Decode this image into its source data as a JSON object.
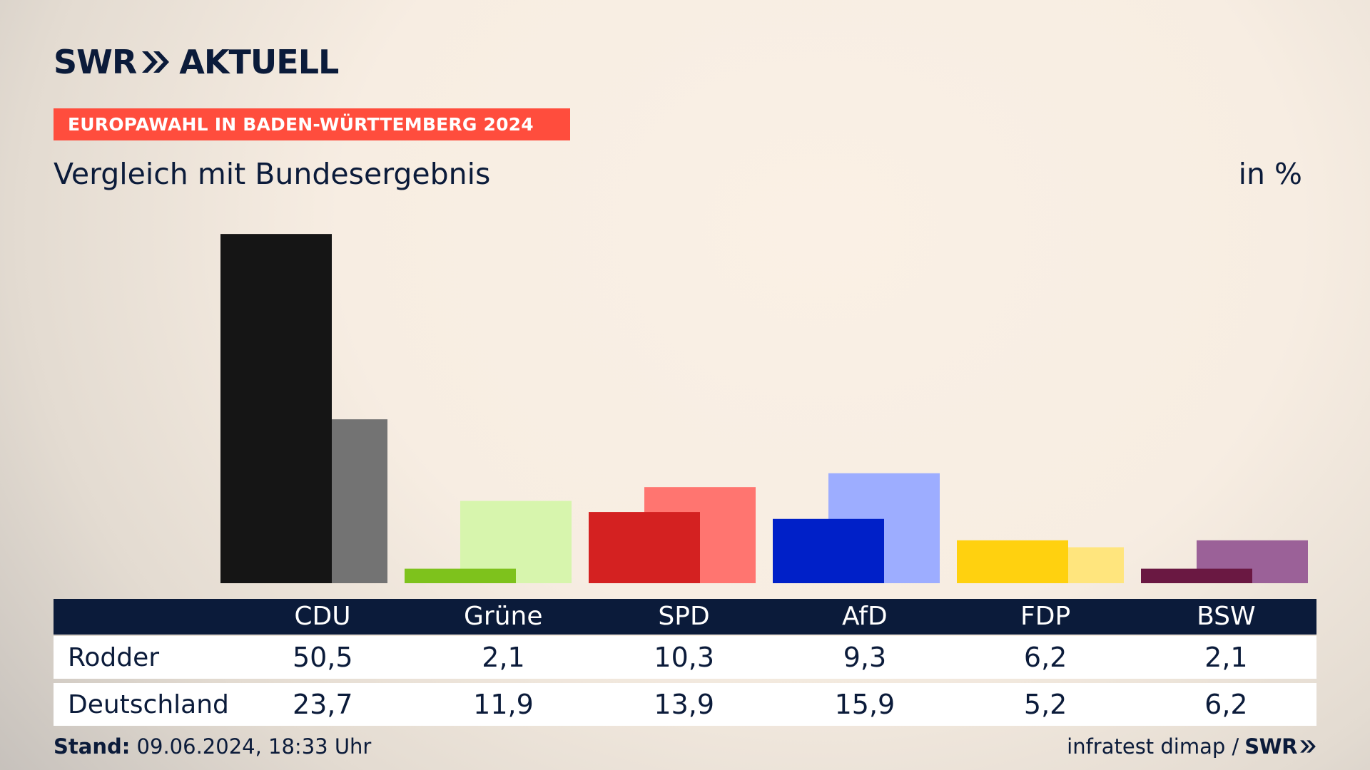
{
  "brand": {
    "logo_text_1": "SWR",
    "logo_text_2": "AKTUELL"
  },
  "banner": "EUROPAWAHL IN BADEN-WÜRTTEMBERG 2024",
  "subtitle": "Vergleich mit Bundesergebnis",
  "unit": "in %",
  "colors": {
    "navy": "#0b1b3a",
    "banner": "#ff4d3d",
    "CDU": [
      "#151515",
      "#737373"
    ],
    "Grüne": [
      "#7ec21c",
      "#d7f5ad"
    ],
    "SPD": [
      "#d42121",
      "#ff7570"
    ],
    "AfD": [
      "#0020c8",
      "#9dadff"
    ],
    "FDP": [
      "#ffd10f",
      "#ffe57d"
    ],
    "BSW": [
      "#6a1842",
      "#9b6198"
    ]
  },
  "chart_data": {
    "type": "bar",
    "categories": [
      "CDU",
      "Grüne",
      "SPD",
      "AfD",
      "FDP",
      "BSW"
    ],
    "series": [
      {
        "name": "Rodder",
        "values": [
          50.5,
          2.1,
          10.3,
          9.3,
          6.2,
          2.1
        ]
      },
      {
        "name": "Deutschland",
        "values": [
          23.7,
          11.9,
          13.9,
          15.9,
          5.2,
          6.2
        ]
      }
    ]
  },
  "table": {
    "headers": [
      "CDU",
      "Grüne",
      "SPD",
      "AfD",
      "FDP",
      "BSW"
    ],
    "rows": [
      {
        "label": "Rodder",
        "values": [
          "50,5",
          "2,1",
          "10,3",
          "9,3",
          "6,2",
          "2,1"
        ]
      },
      {
        "label": "Deutschland",
        "values": [
          "23,7",
          "11,9",
          "13,9",
          "15,9",
          "5,2",
          "6,2"
        ]
      }
    ]
  },
  "footer": {
    "stand_label": "Stand:",
    "stand_value": "09.06.2024, 18:33 Uhr",
    "source": "infratest dimap /",
    "source_brand": "SWR"
  }
}
